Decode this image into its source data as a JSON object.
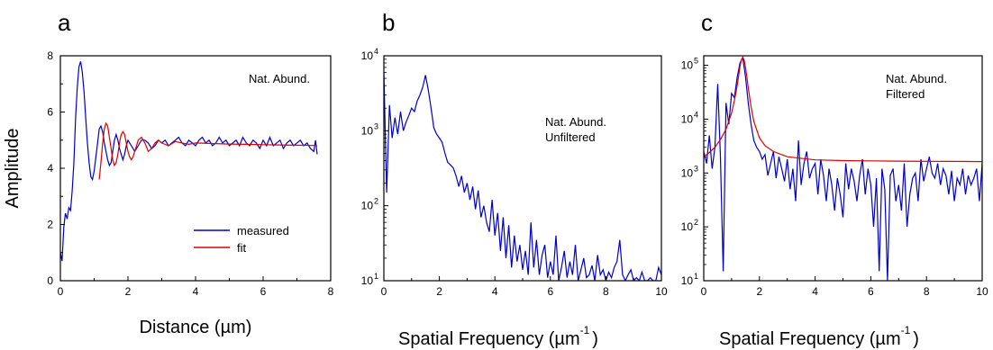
{
  "chart_data": [
    {
      "panel": "a",
      "type": "line",
      "xlabel": "Distance (µm)",
      "ylabel": "Amplitude",
      "xlim": [
        0,
        8
      ],
      "ylim": [
        0,
        8
      ],
      "xticks": [
        0,
        2,
        4,
        6,
        8
      ],
      "yticks": [
        0,
        2,
        4,
        6,
        8
      ],
      "annotation": [
        "Nat. Abund."
      ],
      "legend_position": "bottom-right",
      "series": [
        {
          "name": "measured",
          "color": "#0000cc",
          "x": [
            0,
            0.05,
            0.1,
            0.15,
            0.2,
            0.25,
            0.3,
            0.35,
            0.4,
            0.45,
            0.5,
            0.55,
            0.6,
            0.65,
            0.7,
            0.75,
            0.8,
            0.85,
            0.9,
            0.95,
            1.0,
            1.05,
            1.1,
            1.15,
            1.2,
            1.25,
            1.3,
            1.35,
            1.4,
            1.45,
            1.5,
            1.55,
            1.6,
            1.65,
            1.7,
            1.75,
            1.8,
            1.85,
            1.9,
            1.95,
            2.0,
            2.05,
            2.1,
            2.15,
            2.2,
            2.3,
            2.4,
            2.5,
            2.6,
            2.7,
            2.8,
            2.9,
            3.0,
            3.1,
            3.2,
            3.3,
            3.4,
            3.5,
            3.6,
            3.7,
            3.8,
            3.9,
            4.0,
            4.1,
            4.2,
            4.3,
            4.4,
            4.5,
            4.6,
            4.7,
            4.8,
            4.9,
            5.0,
            5.1,
            5.2,
            5.3,
            5.4,
            5.5,
            5.6,
            5.7,
            5.8,
            5.9,
            6.0,
            6.1,
            6.2,
            6.3,
            6.4,
            6.5,
            6.6,
            6.7,
            6.8,
            6.9,
            7.0,
            7.1,
            7.2,
            7.3,
            7.4,
            7.5,
            7.55,
            7.6
          ],
          "y": [
            1.0,
            0.7,
            1.9,
            2.4,
            2.2,
            2.6,
            2.5,
            3.2,
            4.2,
            5.8,
            6.9,
            7.6,
            7.8,
            7.4,
            6.7,
            5.8,
            4.9,
            4.2,
            3.7,
            3.6,
            3.9,
            4.4,
            4.9,
            5.4,
            5.5,
            5.3,
            4.9,
            4.6,
            4.3,
            4.1,
            4.2,
            4.6,
            5.0,
            5.2,
            5.0,
            4.7,
            4.5,
            4.3,
            4.5,
            4.8,
            5.0,
            4.9,
            4.8,
            4.7,
            4.6,
            4.8,
            5.0,
            5.0,
            4.9,
            4.7,
            4.8,
            5.0,
            4.9,
            5.0,
            4.8,
            4.9,
            5.0,
            5.1,
            4.9,
            4.8,
            5.0,
            4.9,
            4.8,
            5.0,
            5.1,
            4.9,
            5.0,
            4.8,
            4.9,
            5.1,
            4.9,
            5.0,
            4.8,
            4.9,
            5.0,
            4.8,
            5.1,
            4.9,
            4.8,
            5.0,
            4.9,
            4.7,
            5.0,
            4.8,
            5.1,
            4.8,
            4.9,
            5.0,
            4.7,
            4.9,
            5.0,
            4.8,
            4.9,
            5.0,
            4.8,
            4.9,
            4.7,
            4.6,
            5.0,
            4.5
          ]
        },
        {
          "name": "fit",
          "color": "#dd0000",
          "x": [
            1.15,
            1.2,
            1.25,
            1.3,
            1.35,
            1.4,
            1.45,
            1.5,
            1.55,
            1.6,
            1.65,
            1.7,
            1.75,
            1.8,
            1.85,
            1.9,
            1.95,
            2.0,
            2.05,
            2.1,
            2.15,
            2.2,
            2.3,
            2.4,
            2.5,
            2.6,
            2.7,
            2.8,
            2.9,
            3.0,
            3.2,
            3.4,
            3.6,
            3.8,
            4.0,
            4.5,
            5.0,
            5.5,
            6.0,
            6.5,
            7.0,
            7.5,
            7.6
          ],
          "y": [
            3.6,
            4.2,
            4.9,
            5.4,
            5.6,
            5.5,
            5.1,
            4.7,
            4.3,
            4.1,
            4.2,
            4.5,
            4.9,
            5.2,
            5.3,
            5.2,
            4.9,
            4.6,
            4.4,
            4.3,
            4.4,
            4.6,
            5.0,
            5.1,
            4.9,
            4.6,
            4.7,
            4.9,
            5.0,
            4.9,
            4.8,
            4.95,
            4.9,
            4.85,
            4.9,
            4.88,
            4.86,
            4.85,
            4.84,
            4.83,
            4.82,
            4.81,
            4.8
          ]
        }
      ]
    },
    {
      "panel": "b",
      "type": "line",
      "scale_y": "log",
      "xlabel": "Spatial Frequency (µm",
      "xlabel_exponent": "-1",
      "xlabel_close": ")",
      "xlim": [
        0,
        10
      ],
      "ylim": [
        10,
        10000
      ],
      "xticks": [
        0,
        2,
        4,
        6,
        8,
        10
      ],
      "yticks": [
        10,
        100,
        1000,
        10000
      ],
      "annotation": [
        "Nat. Abund.",
        "Unfiltered"
      ],
      "series": [
        {
          "color": "#0000cc",
          "x": [
            0,
            0.1,
            0.2,
            0.3,
            0.4,
            0.5,
            0.6,
            0.7,
            0.8,
            0.9,
            1.0,
            1.1,
            1.2,
            1.3,
            1.4,
            1.5,
            1.6,
            1.7,
            1.8,
            1.9,
            2.0,
            2.1,
            2.2,
            2.3,
            2.4,
            2.5,
            2.6,
            2.7,
            2.8,
            2.9,
            3.0,
            3.1,
            3.2,
            3.3,
            3.4,
            3.5,
            3.6,
            3.7,
            3.8,
            3.9,
            4.0,
            4.1,
            4.2,
            4.3,
            4.4,
            4.5,
            4.6,
            4.7,
            4.8,
            4.9,
            5.0,
            5.1,
            5.2,
            5.3,
            5.4,
            5.5,
            5.6,
            5.7,
            5.8,
            5.9,
            6.0,
            6.1,
            6.2,
            6.3,
            6.4,
            6.5,
            6.6,
            6.7,
            6.8,
            6.9,
            7.0,
            7.1,
            7.2,
            7.3,
            7.4,
            7.5,
            7.6,
            7.7,
            7.8,
            7.9,
            8.0,
            8.1,
            8.2,
            8.3,
            8.4,
            8.5,
            8.6,
            8.7,
            8.8,
            8.9,
            9.0,
            9.1,
            9.2,
            9.3,
            9.4,
            9.5,
            9.6,
            9.7,
            9.8,
            9.9,
            10.0
          ],
          "y": [
            6000,
            150,
            2200,
            800,
            1500,
            900,
            1800,
            1000,
            1300,
            1600,
            2000,
            1800,
            2500,
            3000,
            3800,
            5500,
            3500,
            2000,
            1100,
            900,
            800,
            700,
            500,
            380,
            350,
            320,
            250,
            180,
            250,
            150,
            200,
            120,
            180,
            90,
            160,
            70,
            100,
            60,
            45,
            120,
            40,
            80,
            25,
            70,
            20,
            55,
            15,
            40,
            18,
            30,
            14,
            25,
            12,
            60,
            15,
            35,
            12,
            22,
            30,
            11,
            18,
            12,
            40,
            10,
            15,
            25,
            11,
            18,
            12,
            30,
            10,
            14,
            20,
            11,
            12,
            16,
            10,
            22,
            12,
            14,
            10,
            13,
            11,
            15,
            18,
            35,
            12,
            10,
            12,
            14,
            10,
            11,
            10,
            13,
            10,
            10,
            11,
            10,
            10,
            15,
            12
          ]
        }
      ]
    },
    {
      "panel": "c",
      "type": "line",
      "scale_y": "log",
      "xlabel": "Spatial Frequency (µm",
      "xlabel_exponent": "-1",
      "xlabel_close": ")",
      "xlim": [
        0,
        10
      ],
      "ylim": [
        10,
        150000
      ],
      "xticks": [
        0,
        2,
        4,
        6,
        8,
        10
      ],
      "yticks": [
        10,
        100,
        1000,
        10000,
        100000
      ],
      "annotation": [
        "Nat. Abund.",
        "Filtered"
      ],
      "series": [
        {
          "color": "#0000cc",
          "x": [
            0,
            0.1,
            0.2,
            0.3,
            0.4,
            0.5,
            0.6,
            0.7,
            0.8,
            0.9,
            1.0,
            1.1,
            1.2,
            1.3,
            1.4,
            1.5,
            1.6,
            1.7,
            1.8,
            1.9,
            2.0,
            2.1,
            2.2,
            2.3,
            2.4,
            2.5,
            2.6,
            2.7,
            2.8,
            2.9,
            3.0,
            3.1,
            3.2,
            3.3,
            3.4,
            3.5,
            3.6,
            3.7,
            3.8,
            3.9,
            4.0,
            4.1,
            4.2,
            4.3,
            4.4,
            4.5,
            4.6,
            4.7,
            4.8,
            4.9,
            5.0,
            5.1,
            5.2,
            5.3,
            5.4,
            5.5,
            5.6,
            5.7,
            5.8,
            5.9,
            6.0,
            6.1,
            6.2,
            6.3,
            6.4,
            6.5,
            6.6,
            6.7,
            6.8,
            6.9,
            7.0,
            7.1,
            7.2,
            7.3,
            7.4,
            7.5,
            7.6,
            7.7,
            7.8,
            7.9,
            8.0,
            8.1,
            8.2,
            8.3,
            8.4,
            8.5,
            8.6,
            8.7,
            8.8,
            8.9,
            9.0,
            9.1,
            9.2,
            9.3,
            9.4,
            9.5,
            9.6,
            9.7,
            9.8,
            9.9,
            10.0
          ],
          "y": [
            2500,
            1500,
            5000,
            1200,
            3000,
            45000,
            2000,
            15,
            20000,
            8000,
            30000,
            25000,
            60000,
            110000,
            140000,
            60000,
            20000,
            8000,
            4000,
            3000,
            2500,
            1800,
            2200,
            900,
            1500,
            2500,
            800,
            2000,
            1200,
            700,
            1800,
            500,
            1200,
            300,
            4000,
            600,
            1500,
            2500,
            800,
            1200,
            1500,
            400,
            1800,
            900,
            300,
            1200,
            600,
            200,
            800,
            400,
            150,
            1500,
            500,
            1200,
            700,
            300,
            900,
            1800,
            400,
            1200,
            600,
            100,
            800,
            15,
            1200,
            500,
            10,
            900,
            1200,
            300,
            600,
            200,
            1500,
            100,
            400,
            800,
            1000,
            300,
            1800,
            700,
            1200,
            2000,
            1000,
            800,
            1500,
            600,
            1200,
            900,
            400,
            1100,
            300,
            800,
            600,
            1200,
            400,
            900,
            600,
            800,
            1200,
            300,
            1500
          ]
        },
        {
          "color": "#dd0000",
          "x": [
            0,
            0.2,
            0.4,
            0.6,
            0.8,
            1.0,
            1.1,
            1.2,
            1.25,
            1.3,
            1.35,
            1.4,
            1.45,
            1.5,
            1.55,
            1.6,
            1.7,
            1.8,
            2.0,
            2.2,
            2.5,
            3.0,
            4.0,
            5.0,
            6.0,
            7.0,
            8.0,
            9.0,
            10.0
          ],
          "y": [
            2000,
            2400,
            3000,
            4200,
            6500,
            13000,
            22000,
            42000,
            62000,
            95000,
            125000,
            140000,
            125000,
            90000,
            60000,
            38000,
            17000,
            9000,
            4500,
            3200,
            2500,
            2000,
            1750,
            1700,
            1680,
            1660,
            1650,
            1640,
            1630
          ]
        }
      ]
    }
  ],
  "panel_labels": [
    "a",
    "b",
    "c"
  ]
}
